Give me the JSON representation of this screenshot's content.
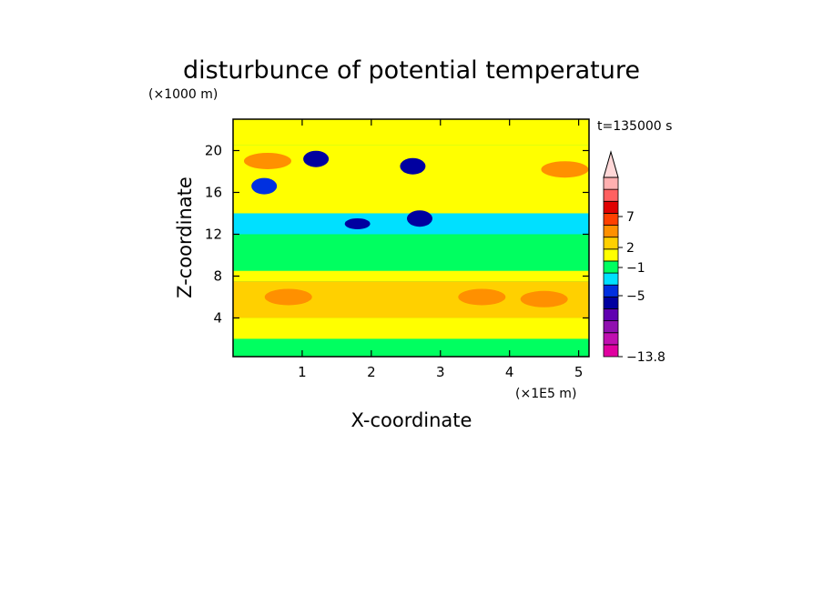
{
  "chart_data": {
    "type": "heatmap",
    "title": "disturbunce of potential temperature",
    "xlabel": "X-coordinate",
    "ylabel": "Z-coordinate",
    "x_unit_label": "(×1E5 m)",
    "y_unit_label": "(×1000 m)",
    "time_label": "t=135000 s",
    "xlim": [
      0,
      5.15
    ],
    "ylim": [
      0.3,
      23
    ],
    "x_ticks": [
      "1",
      "2",
      "3",
      "4",
      "5"
    ],
    "y_ticks": [
      "4",
      "8",
      "12",
      "16",
      "20"
    ],
    "x_tick_values": [
      1,
      2,
      3,
      4,
      5
    ],
    "y_tick_values": [
      4,
      8,
      12,
      16,
      20
    ],
    "colorbar": {
      "labels": [
        "7",
        "2",
        "−1",
        "−5",
        "−13.8"
      ],
      "label_levels": [
        7,
        2,
        -1,
        -5,
        -13.8
      ],
      "vmin": -13.8,
      "colors": [
        "#e000a0",
        "#c010b0",
        "#9010b0",
        "#6000b0",
        "#0000a0",
        "#0030e0",
        "#00e0ff",
        "#00ff60",
        "#ffff00",
        "#ffd000",
        "#ff9000",
        "#ff4000",
        "#e00000",
        "#ff6060",
        "#ffb0b0"
      ]
    },
    "background_color": "#00ff60",
    "bands": [
      {
        "z": [
          20.5,
          23
        ],
        "value": 1
      },
      {
        "z": [
          14.0,
          20.5
        ],
        "value": 1
      },
      {
        "z": [
          12.0,
          14.0
        ],
        "value": -1
      },
      {
        "z": [
          8.5,
          12.0
        ],
        "value": 0
      },
      {
        "z": [
          7.5,
          8.5
        ],
        "value": 1
      },
      {
        "z": [
          4.0,
          7.5
        ],
        "value": 2
      },
      {
        "z": [
          2.0,
          4.0
        ],
        "value": 1
      },
      {
        "z": [
          0.3,
          2.0
        ],
        "value": 0
      }
    ],
    "features": [
      {
        "x": 0.5,
        "z": 19.0,
        "value": 3
      },
      {
        "x": 0.45,
        "z": 16.6,
        "value": -3
      },
      {
        "x": 4.8,
        "z": 18.2,
        "value": 3
      },
      {
        "x": 1.2,
        "z": 19.2,
        "value": -2
      },
      {
        "x": 1.8,
        "z": 13.0,
        "value": -5
      },
      {
        "x": 2.6,
        "z": 18.5,
        "value": -2
      },
      {
        "x": 2.7,
        "z": 13.5,
        "value": -2
      },
      {
        "x": 3.6,
        "z": 6.0,
        "value": 3
      },
      {
        "x": 0.8,
        "z": 6.0,
        "value": 3
      },
      {
        "x": 4.5,
        "z": 5.8,
        "value": 3
      }
    ]
  }
}
